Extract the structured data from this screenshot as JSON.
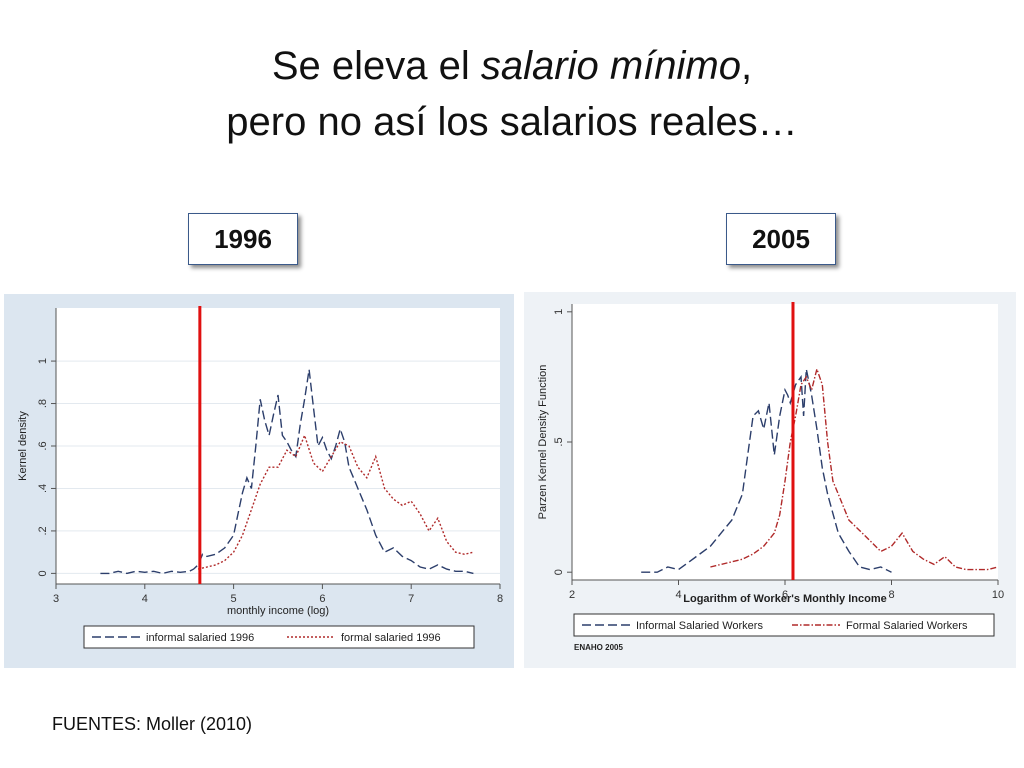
{
  "slide": {
    "title_part1": "Se eleva el ",
    "title_italic": "salario mínimo",
    "title_part2": ",",
    "title_line2": "pero no así los salarios reales…",
    "source": "FUENTES:  Moller (2010)",
    "year_left": "1996",
    "year_right": "2005"
  },
  "colors": {
    "informal": "#2c3e6b",
    "formal": "#b02a2a",
    "min_wage_line": "#e01010",
    "panel_left_bg": "#dce6f0",
    "panel_right_bg": "#eef2f6"
  },
  "chart_data": [
    {
      "type": "line",
      "ylabel": "Kernel density",
      "xlabel": "monthly income (log)",
      "xlim": [
        3,
        8
      ],
      "ylim": [
        -0.05,
        1.25
      ],
      "xticks": [
        "3",
        "4",
        "5",
        "6",
        "7",
        "8"
      ],
      "yticks": [
        "0",
        ".2",
        ".4",
        ".6",
        ".8",
        "1"
      ],
      "vline_x": 4.62,
      "legend_position": "bottom",
      "series": [
        {
          "name": "informal salaried 1996",
          "style": "long-dash",
          "x": [
            3.5,
            3.6,
            3.7,
            3.8,
            3.9,
            4.0,
            4.1,
            4.2,
            4.3,
            4.4,
            4.5,
            4.55,
            4.6,
            4.65,
            4.7,
            4.8,
            4.9,
            5.0,
            5.05,
            5.1,
            5.15,
            5.2,
            5.25,
            5.3,
            5.35,
            5.4,
            5.45,
            5.5,
            5.55,
            5.6,
            5.65,
            5.7,
            5.75,
            5.8,
            5.85,
            5.9,
            5.95,
            6.0,
            6.05,
            6.1,
            6.15,
            6.2,
            6.25,
            6.3,
            6.35,
            6.4,
            6.5,
            6.6,
            6.7,
            6.8,
            6.9,
            7.0,
            7.1,
            7.2,
            7.3,
            7.4,
            7.5,
            7.6,
            7.7
          ],
          "y": [
            0,
            0,
            0.01,
            0,
            0.01,
            0.005,
            0.01,
            0,
            0.01,
            0.005,
            0.01,
            0.02,
            0.04,
            0.09,
            0.08,
            0.09,
            0.12,
            0.18,
            0.28,
            0.38,
            0.45,
            0.4,
            0.6,
            0.82,
            0.72,
            0.65,
            0.75,
            0.84,
            0.65,
            0.62,
            0.58,
            0.55,
            0.7,
            0.82,
            0.96,
            0.78,
            0.6,
            0.64,
            0.58,
            0.54,
            0.6,
            0.68,
            0.62,
            0.5,
            0.45,
            0.4,
            0.3,
            0.18,
            0.1,
            0.12,
            0.08,
            0.06,
            0.03,
            0.02,
            0.04,
            0.02,
            0.01,
            0.01,
            0
          ]
        },
        {
          "name": "formal salaried 1996",
          "style": "dotted",
          "x": [
            4.6,
            4.7,
            4.8,
            4.9,
            5.0,
            5.1,
            5.2,
            5.3,
            5.4,
            5.5,
            5.6,
            5.7,
            5.8,
            5.9,
            6.0,
            6.1,
            6.2,
            6.3,
            6.4,
            6.5,
            6.6,
            6.7,
            6.8,
            6.9,
            7.0,
            7.1,
            7.2,
            7.3,
            7.4,
            7.5,
            7.6,
            7.7
          ],
          "y": [
            0.02,
            0.03,
            0.04,
            0.06,
            0.1,
            0.18,
            0.3,
            0.42,
            0.5,
            0.5,
            0.58,
            0.55,
            0.65,
            0.52,
            0.48,
            0.55,
            0.62,
            0.6,
            0.5,
            0.45,
            0.55,
            0.4,
            0.35,
            0.32,
            0.34,
            0.28,
            0.2,
            0.26,
            0.15,
            0.1,
            0.09,
            0.1
          ]
        }
      ]
    },
    {
      "type": "line",
      "ylabel": "Parzen Kernel Density Function",
      "xlabel": "Logarithm of Worker's Monthly Income",
      "xlim": [
        2,
        10
      ],
      "ylim": [
        -0.03,
        1.03
      ],
      "xticks": [
        "2",
        "4",
        "6",
        "8",
        "10"
      ],
      "yticks": [
        "0",
        ".5",
        "1"
      ],
      "vline_x": 6.15,
      "legend_position": "bottom",
      "note": "ENAHO 2005",
      "series": [
        {
          "name": "Informal Salaried Workers",
          "style": "long-dash",
          "x": [
            3.3,
            3.6,
            3.8,
            4.0,
            4.2,
            4.4,
            4.6,
            4.8,
            5.0,
            5.2,
            5.3,
            5.4,
            5.5,
            5.6,
            5.7,
            5.8,
            5.9,
            6.0,
            6.05,
            6.1,
            6.2,
            6.3,
            6.35,
            6.4,
            6.5,
            6.6,
            6.7,
            6.8,
            7.0,
            7.2,
            7.4,
            7.6,
            7.8,
            8.0
          ],
          "y": [
            0,
            0,
            0.02,
            0.01,
            0.04,
            0.07,
            0.1,
            0.15,
            0.2,
            0.3,
            0.45,
            0.6,
            0.62,
            0.55,
            0.65,
            0.45,
            0.6,
            0.7,
            0.68,
            0.65,
            0.72,
            0.75,
            0.6,
            0.78,
            0.68,
            0.55,
            0.4,
            0.3,
            0.15,
            0.08,
            0.02,
            0.01,
            0.02,
            0
          ]
        },
        {
          "name": "Formal Salaried Workers",
          "style": "dash-dot",
          "x": [
            4.6,
            4.8,
            5.0,
            5.2,
            5.4,
            5.6,
            5.8,
            5.9,
            6.0,
            6.1,
            6.2,
            6.3,
            6.4,
            6.5,
            6.6,
            6.7,
            6.8,
            6.9,
            7.0,
            7.1,
            7.2,
            7.4,
            7.6,
            7.8,
            8.0,
            8.2,
            8.4,
            8.6,
            8.8,
            9.0,
            9.2,
            9.4,
            9.6,
            9.8,
            10.0
          ],
          "y": [
            0.02,
            0.03,
            0.04,
            0.05,
            0.07,
            0.1,
            0.15,
            0.22,
            0.35,
            0.5,
            0.6,
            0.72,
            0.75,
            0.7,
            0.78,
            0.72,
            0.5,
            0.35,
            0.3,
            0.25,
            0.2,
            0.16,
            0.12,
            0.08,
            0.1,
            0.15,
            0.08,
            0.05,
            0.03,
            0.06,
            0.02,
            0.01,
            0.01,
            0.01,
            0.02
          ]
        }
      ]
    }
  ]
}
